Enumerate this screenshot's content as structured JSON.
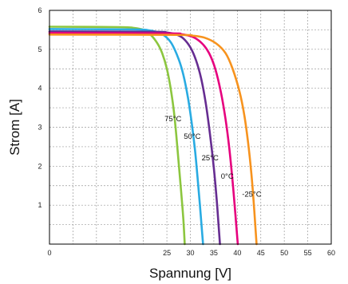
{
  "chart_data": {
    "type": "line",
    "title": "",
    "xlabel": "Spannung [V]",
    "ylabel": "Strom [A]",
    "xlim": [
      0,
      60
    ],
    "ylim": [
      0,
      6
    ],
    "xticks": [
      0,
      5,
      10,
      15,
      20,
      25,
      30,
      35,
      40,
      45,
      50,
      55,
      60
    ],
    "xtick_labels": [
      "0",
      "",
      "",
      "",
      "",
      "25",
      "30",
      "35",
      "40",
      "45",
      "50",
      "55",
      "60"
    ],
    "yticks": [
      0,
      1,
      2,
      3,
      4,
      5,
      6
    ],
    "ytick_labels": [
      "",
      "1",
      "2",
      "3",
      "4",
      "5",
      "6"
    ],
    "grid": true,
    "legend": "none",
    "series": [
      {
        "name": "75°C",
        "color": "#8cc63f",
        "label_pos": [
          24.5,
          3.15
        ],
        "points": [
          [
            0,
            5.58
          ],
          [
            15,
            5.57
          ],
          [
            18,
            5.55
          ],
          [
            20,
            5.5
          ],
          [
            21.5,
            5.38
          ],
          [
            23,
            5.15
          ],
          [
            24,
            4.9
          ],
          [
            25,
            4.5
          ],
          [
            25.8,
            4.0
          ],
          [
            26.5,
            3.4
          ],
          [
            27,
            2.8
          ],
          [
            27.5,
            2.1
          ],
          [
            28,
            1.4
          ],
          [
            28.5,
            0.65
          ],
          [
            28.8,
            0
          ]
        ]
      },
      {
        "name": "50°C",
        "color": "#29abe2",
        "label_pos": [
          28.6,
          2.7
        ],
        "points": [
          [
            0,
            5.52
          ],
          [
            18,
            5.51
          ],
          [
            21,
            5.49
          ],
          [
            23,
            5.44
          ],
          [
            24.5,
            5.35
          ],
          [
            26,
            5.15
          ],
          [
            27.5,
            4.75
          ],
          [
            28.5,
            4.35
          ],
          [
            29.5,
            3.75
          ],
          [
            30.3,
            3.1
          ],
          [
            31,
            2.4
          ],
          [
            31.5,
            1.75
          ],
          [
            32,
            1.05
          ],
          [
            32.5,
            0.3
          ],
          [
            32.7,
            0
          ]
        ]
      },
      {
        "name": "25°C",
        "color": "#662d91",
        "label_pos": [
          32.4,
          2.15
        ],
        "points": [
          [
            0,
            5.46
          ],
          [
            22,
            5.45
          ],
          [
            25,
            5.43
          ],
          [
            27,
            5.38
          ],
          [
            28.5,
            5.28
          ],
          [
            30,
            5.05
          ],
          [
            31.2,
            4.72
          ],
          [
            32.3,
            4.25
          ],
          [
            33.3,
            3.6
          ],
          [
            34.2,
            2.8
          ],
          [
            35,
            1.95
          ],
          [
            35.6,
            1.15
          ],
          [
            36,
            0.5
          ],
          [
            36.3,
            0
          ]
        ]
      },
      {
        "name": "0°C",
        "color": "#e6007e",
        "label_pos": [
          36.5,
          1.68
        ],
        "points": [
          [
            0,
            5.42
          ],
          [
            25,
            5.41
          ],
          [
            28,
            5.39
          ],
          [
            30.5,
            5.32
          ],
          [
            32.5,
            5.15
          ],
          [
            34,
            4.9
          ],
          [
            35.3,
            4.5
          ],
          [
            36.5,
            3.9
          ],
          [
            37.5,
            3.2
          ],
          [
            38.3,
            2.45
          ],
          [
            39,
            1.6
          ],
          [
            39.6,
            0.75
          ],
          [
            40,
            0.15
          ],
          [
            40.1,
            0
          ]
        ]
      },
      {
        "name": "-25°C",
        "color": "#f7931e",
        "label_pos": [
          41.0,
          1.22
        ],
        "points": [
          [
            0,
            5.38
          ],
          [
            27,
            5.37
          ],
          [
            30.5,
            5.35
          ],
          [
            33,
            5.3
          ],
          [
            35.5,
            5.15
          ],
          [
            37.5,
            4.9
          ],
          [
            39,
            4.5
          ],
          [
            40.5,
            3.9
          ],
          [
            41.5,
            3.3
          ],
          [
            42.3,
            2.6
          ],
          [
            43,
            1.8
          ],
          [
            43.5,
            1.05
          ],
          [
            43.9,
            0.35
          ],
          [
            44.1,
            0
          ]
        ]
      }
    ]
  }
}
